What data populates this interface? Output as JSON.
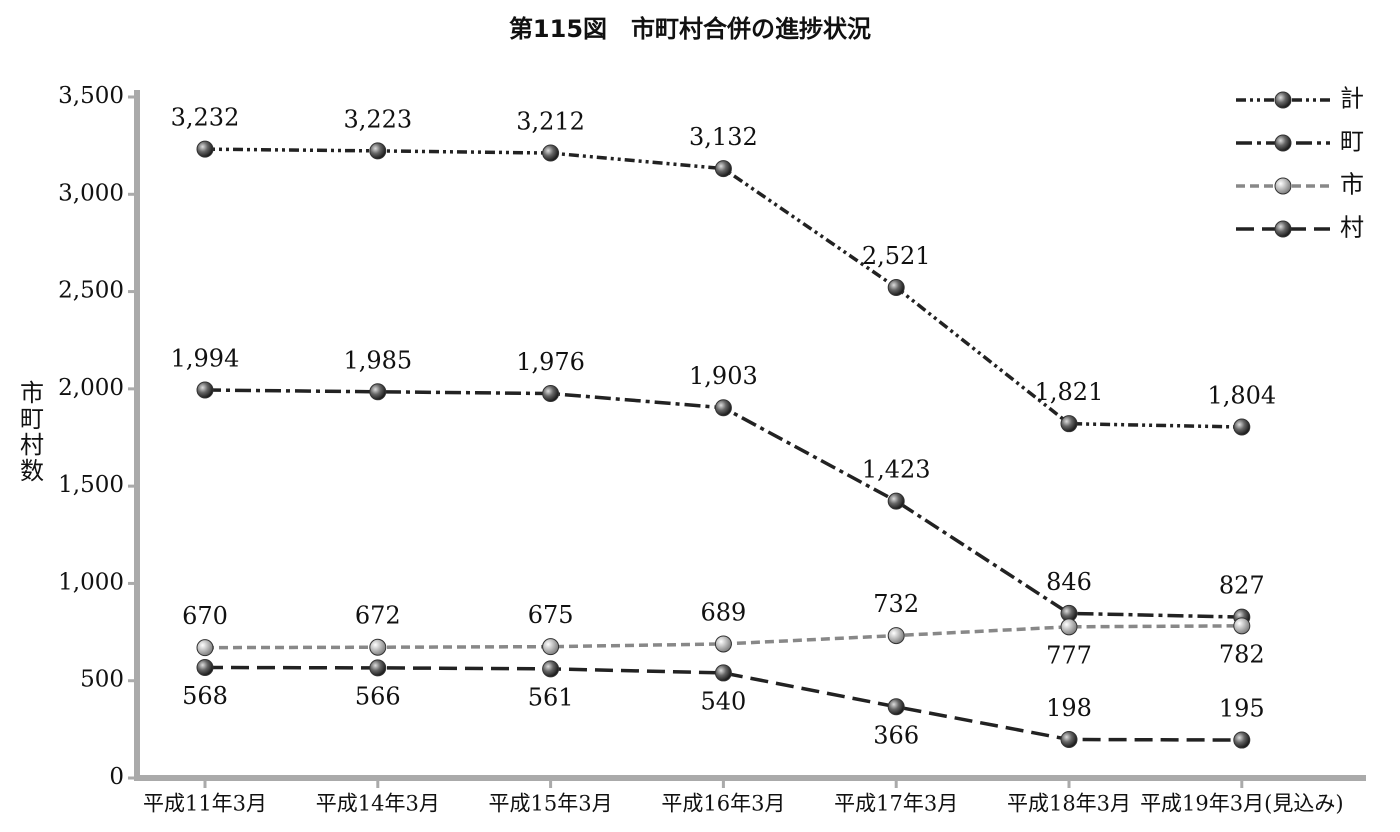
{
  "chart_data": {
    "type": "line",
    "title": "第115図　市町村合併の進捗状況",
    "y_label": "市町村数",
    "categories": [
      "平成11年3月",
      "平成14年3月",
      "平成15年3月",
      "平成16年3月",
      "平成17年3月",
      "平成18年3月",
      "平成19年3月(見込み)"
    ],
    "ylim": [
      0,
      3500
    ],
    "yticks": [
      0,
      500,
      {
        "value": 1000,
        "label": "1,000"
      },
      {
        "value": 1500,
        "label": "1,500"
      },
      {
        "value": 2000,
        "label": "2,000"
      },
      {
        "value": 2500,
        "label": "2,500"
      },
      {
        "value": 3000,
        "label": "3,000"
      },
      {
        "value": 3500,
        "label": "3,500"
      }
    ],
    "grid": false,
    "legend": "top-right",
    "series": [
      {
        "name": "計",
        "color": "#222222",
        "values": [
          3232,
          3223,
          3212,
          3132,
          2521,
          1821,
          1804
        ],
        "value_labels": [
          "3,232",
          "3,223",
          "3,212",
          "3,132",
          "2,521",
          "1,821",
          "1,804"
        ]
      },
      {
        "name": "町",
        "color": "#222222",
        "values": [
          1994,
          1985,
          1976,
          1903,
          1423,
          846,
          827
        ],
        "value_labels": [
          "1,994",
          "1,985",
          "1,976",
          "1,903",
          "1,423",
          "846",
          "827"
        ]
      },
      {
        "name": "市",
        "color": "#888888",
        "values": [
          670,
          672,
          675,
          689,
          732,
          777,
          782
        ],
        "value_labels": [
          "670",
          "672",
          "675",
          "689",
          "732",
          "777",
          "782"
        ]
      },
      {
        "name": "村",
        "color": "#222222",
        "values": [
          568,
          566,
          561,
          540,
          366,
          198,
          195
        ],
        "value_labels": [
          "568",
          "566",
          "561",
          "540",
          "366",
          "198",
          "195"
        ]
      }
    ]
  }
}
